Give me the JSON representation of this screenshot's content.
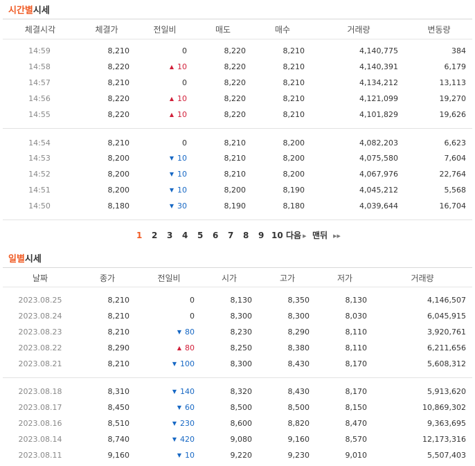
{
  "time_section": {
    "title_accent": "시간별",
    "title_rest": "시세",
    "headers": [
      "체결시각",
      "체결가",
      "전일비",
      "매도",
      "매수",
      "거래량",
      "변동량"
    ],
    "groups": [
      [
        {
          "time": "14:59",
          "price": "8,210",
          "dir": "flat",
          "change": "0",
          "ask": "8,220",
          "bid": "8,210",
          "volume": "4,140,775",
          "delta": "384"
        },
        {
          "time": "14:58",
          "price": "8,220",
          "dir": "up",
          "change": "10",
          "ask": "8,220",
          "bid": "8,210",
          "volume": "4,140,391",
          "delta": "6,179"
        },
        {
          "time": "14:57",
          "price": "8,210",
          "dir": "flat",
          "change": "0",
          "ask": "8,220",
          "bid": "8,210",
          "volume": "4,134,212",
          "delta": "13,113"
        },
        {
          "time": "14:56",
          "price": "8,220",
          "dir": "up",
          "change": "10",
          "ask": "8,220",
          "bid": "8,210",
          "volume": "4,121,099",
          "delta": "19,270"
        },
        {
          "time": "14:55",
          "price": "8,220",
          "dir": "up",
          "change": "10",
          "ask": "8,220",
          "bid": "8,210",
          "volume": "4,101,829",
          "delta": "19,626"
        }
      ],
      [
        {
          "time": "14:54",
          "price": "8,210",
          "dir": "flat",
          "change": "0",
          "ask": "8,210",
          "bid": "8,200",
          "volume": "4,082,203",
          "delta": "6,623"
        },
        {
          "time": "14:53",
          "price": "8,200",
          "dir": "down",
          "change": "10",
          "ask": "8,210",
          "bid": "8,200",
          "volume": "4,075,580",
          "delta": "7,604"
        },
        {
          "time": "14:52",
          "price": "8,200",
          "dir": "down",
          "change": "10",
          "ask": "8,210",
          "bid": "8,200",
          "volume": "4,067,976",
          "delta": "22,764"
        },
        {
          "time": "14:51",
          "price": "8,200",
          "dir": "down",
          "change": "10",
          "ask": "8,200",
          "bid": "8,190",
          "volume": "4,045,212",
          "delta": "5,568"
        },
        {
          "time": "14:50",
          "price": "8,180",
          "dir": "down",
          "change": "30",
          "ask": "8,190",
          "bid": "8,180",
          "volume": "4,039,644",
          "delta": "16,704"
        }
      ]
    ]
  },
  "pagination": {
    "pages": [
      "1",
      "2",
      "3",
      "4",
      "5",
      "6",
      "7",
      "8",
      "9",
      "10"
    ],
    "current": "1",
    "next_label": "다음",
    "last_label": "맨뒤"
  },
  "daily_section": {
    "title_accent": "일별",
    "title_rest": "시세",
    "headers": [
      "날짜",
      "종가",
      "전일비",
      "시가",
      "고가",
      "저가",
      "거래량"
    ],
    "groups": [
      [
        {
          "date": "2023.08.25",
          "close": "8,210",
          "dir": "flat",
          "change": "0",
          "open": "8,130",
          "high": "8,350",
          "low": "8,130",
          "volume": "4,146,507"
        },
        {
          "date": "2023.08.24",
          "close": "8,210",
          "dir": "flat",
          "change": "0",
          "open": "8,300",
          "high": "8,300",
          "low": "8,030",
          "volume": "6,045,915"
        },
        {
          "date": "2023.08.23",
          "close": "8,210",
          "dir": "down",
          "change": "80",
          "open": "8,230",
          "high": "8,290",
          "low": "8,110",
          "volume": "3,920,761"
        },
        {
          "date": "2023.08.22",
          "close": "8,290",
          "dir": "up",
          "change": "80",
          "open": "8,250",
          "high": "8,380",
          "low": "8,110",
          "volume": "6,211,656"
        },
        {
          "date": "2023.08.21",
          "close": "8,210",
          "dir": "down",
          "change": "100",
          "open": "8,300",
          "high": "8,430",
          "low": "8,170",
          "volume": "5,608,312"
        }
      ],
      [
        {
          "date": "2023.08.18",
          "close": "8,310",
          "dir": "down",
          "change": "140",
          "open": "8,320",
          "high": "8,430",
          "low": "8,170",
          "volume": "5,913,620"
        },
        {
          "date": "2023.08.17",
          "close": "8,450",
          "dir": "down",
          "change": "60",
          "open": "8,500",
          "high": "8,500",
          "low": "8,150",
          "volume": "10,869,302"
        },
        {
          "date": "2023.08.16",
          "close": "8,510",
          "dir": "down",
          "change": "230",
          "open": "8,600",
          "high": "8,820",
          "low": "8,470",
          "volume": "9,363,695"
        },
        {
          "date": "2023.08.14",
          "close": "8,740",
          "dir": "down",
          "change": "420",
          "open": "9,080",
          "high": "9,160",
          "low": "8,570",
          "volume": "12,173,316"
        },
        {
          "date": "2023.08.11",
          "close": "9,160",
          "dir": "down",
          "change": "10",
          "open": "9,220",
          "high": "9,230",
          "low": "9,010",
          "volume": "5,507,403"
        }
      ]
    ]
  },
  "colors": {
    "accent": "#f05a23",
    "up": "#d1203a",
    "down": "#1768c4"
  },
  "icons": {
    "up": "triangle-up-icon",
    "down": "triangle-down-icon",
    "next": "chevron-right-icon",
    "last": "double-chevron-right-icon"
  }
}
